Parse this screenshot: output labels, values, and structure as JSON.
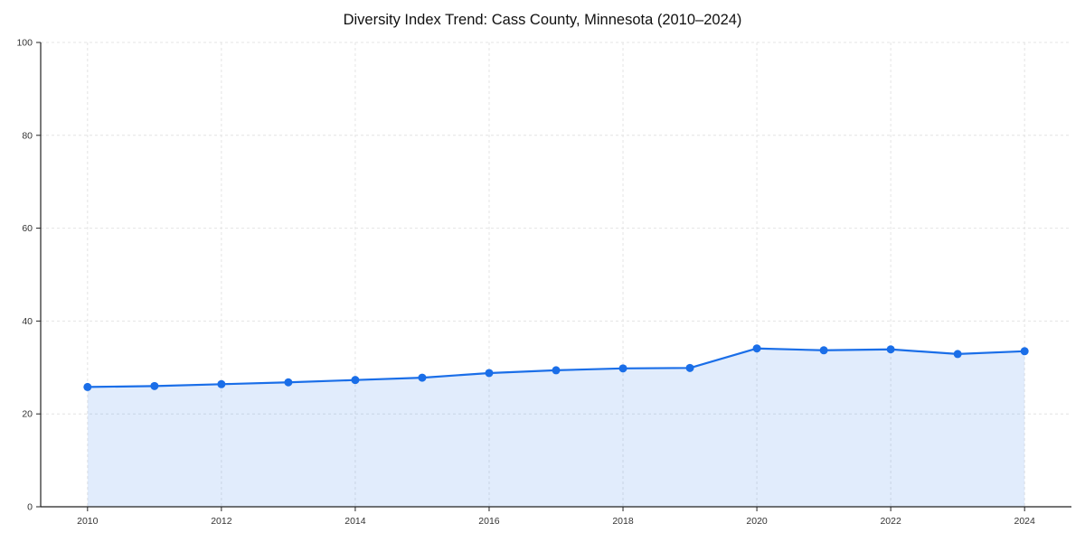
{
  "chart_data": {
    "type": "line",
    "title": "Diversity Index Trend: Cass County, Minnesota (2010–2024)",
    "x": [
      2010,
      2011,
      2012,
      2013,
      2014,
      2015,
      2016,
      2017,
      2018,
      2019,
      2020,
      2021,
      2022,
      2023,
      2024
    ],
    "series": [
      {
        "name": "Diversity Index",
        "values": [
          25.8,
          26.0,
          26.4,
          26.8,
          27.3,
          27.8,
          28.8,
          29.4,
          29.8,
          29.9,
          34.1,
          33.7,
          33.9,
          32.9,
          33.5
        ]
      }
    ],
    "xticks": [
      2010,
      2012,
      2014,
      2016,
      2018,
      2020,
      2022,
      2024
    ],
    "yticks": [
      0,
      20,
      40,
      60,
      80,
      100
    ],
    "xlim": [
      2009.3,
      2024.7
    ],
    "ylim": [
      0,
      100
    ],
    "grid": true,
    "legend": false,
    "xlabel": "",
    "ylabel": "",
    "line_color": "#1a6ee8",
    "marker_color": "#1a6ee8",
    "fill_color": "rgba(26, 110, 232, 0.13)",
    "grid_color": "#e4e4e4",
    "axis_color": "#222222"
  }
}
